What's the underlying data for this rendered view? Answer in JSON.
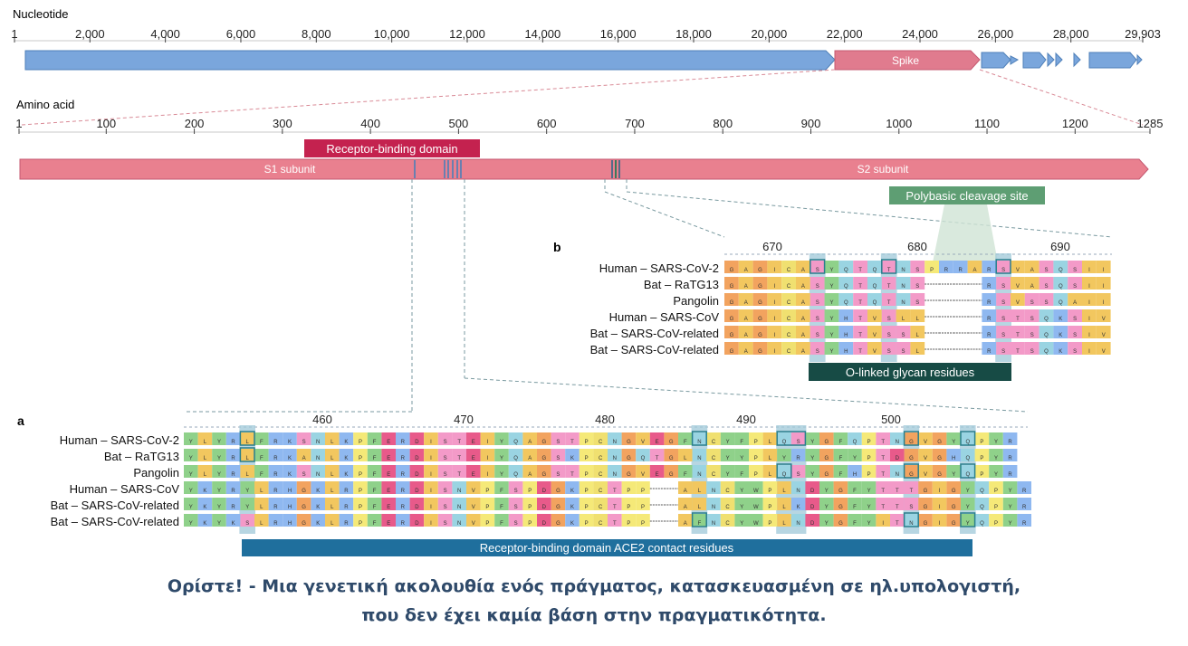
{
  "colors": {
    "genome_bar": "#7aa6dc",
    "spike_bar": "#e07b8e",
    "protein_bar": "#e9808f",
    "rbd_label_bg": "#c4224f",
    "cleavage_label_bg": "#5e9e73",
    "glycan_bar_bg": "#174b45",
    "contact_bar_bg": "#1f6f9d",
    "highlight_col": "#9fc8d8",
    "box_outline": "#2a7f8d",
    "dashed_lines": "#d98a96"
  },
  "nucleotide": {
    "label": "Nucleotide",
    "ticks": [
      "1",
      "2,000",
      "4,000",
      "6,000",
      "8,000",
      "10,000",
      "12,000",
      "14,000",
      "16,000",
      "18,000",
      "20,000",
      "22,000",
      "24,000",
      "26,000",
      "28,000",
      "29,903"
    ],
    "spike_label": "Spike"
  },
  "amino_acid": {
    "label": "Amino acid",
    "ticks": [
      "1",
      "100",
      "200",
      "300",
      "400",
      "500",
      "600",
      "700",
      "800",
      "900",
      "1000",
      "1100",
      "1200",
      "1285"
    ],
    "s1_label": "S1 subunit",
    "s2_label": "S2 subunit",
    "rbd_label": "Receptor-binding domain",
    "cleavage_label": "Polybasic cleavage site"
  },
  "panel_b": {
    "letter": "b",
    "positions": [
      "670",
      "680",
      "690"
    ],
    "species": [
      "Human – SARS-CoV-2",
      "Bat – RaTG13",
      "Pangolin",
      "Human – SARS-CoV",
      "Bat – SARS-CoV-related",
      "Bat – SARS-CoV-related"
    ],
    "sequences": [
      "GAGICASYQTQTNSPRRARSVASQSII",
      "GAGICASYQTQTNS----RSVASQSII",
      "GAGICASYQTQTNS----RSVSSQAII",
      "GAGICASYHTVSLL----RSTSQKSIV",
      "GAGICASYHTVSSL----RSTSQKSIV",
      "GAGICASYHTVSSL----RSTSQKSIV"
    ],
    "glycan_label": "O-linked glycan residues"
  },
  "panel_a": {
    "letter": "a",
    "positions": [
      "460",
      "470",
      "480",
      "490",
      "500"
    ],
    "species": [
      "Human – SARS-CoV-2",
      "Bat – RaTG13",
      "Pangolin",
      "Human – SARS-CoV",
      "Bat – SARS-CoV-related",
      "Bat – SARS-CoV-related"
    ],
    "sequences": [
      "YLYRLFRKSNLKPFERDISTEIYQAGSTPCNGVEGFNCYFPLQSYGFQPTNGVGYQPYR",
      "YLYRLFRKANLKPFERDISTEIYQAGSKPCNGQTGLNCYYPLYRYGFYPTDGVGHQPYR",
      "YLYRLFRKSNLKPFERDISTEIYQAGSTPCNGVEGFNCYFPLQSYGFHPTNGVGYQPYR",
      "YKYRYLRHGKLRPFERDISNVPFSPDGKPCTPP--ALNCYWPLNDYGFYTTTGIGYQPYR",
      "YKYRYLRHGKLRPFERDISNVPFSPDGKPCTPP--ALNCYWPLKDYGFYTTSGIGYQPYR",
      "YKYKSLRHGKLRPFERDISNVPFSPDGKPCTPP--AFNCYWPLNDYGFYITNGIGYQPYR"
    ],
    "contact_label": "Receptor-binding domain ACE2 contact residues"
  },
  "caption": {
    "line1": "Ορίστε! - Μια γενετική ακολουθία ενός πράγματος, κατασκευασμένη σε ηλ.υπολογιστή,",
    "line2": "που δεν έχει καμία βάση στην πραγματικότητα."
  }
}
